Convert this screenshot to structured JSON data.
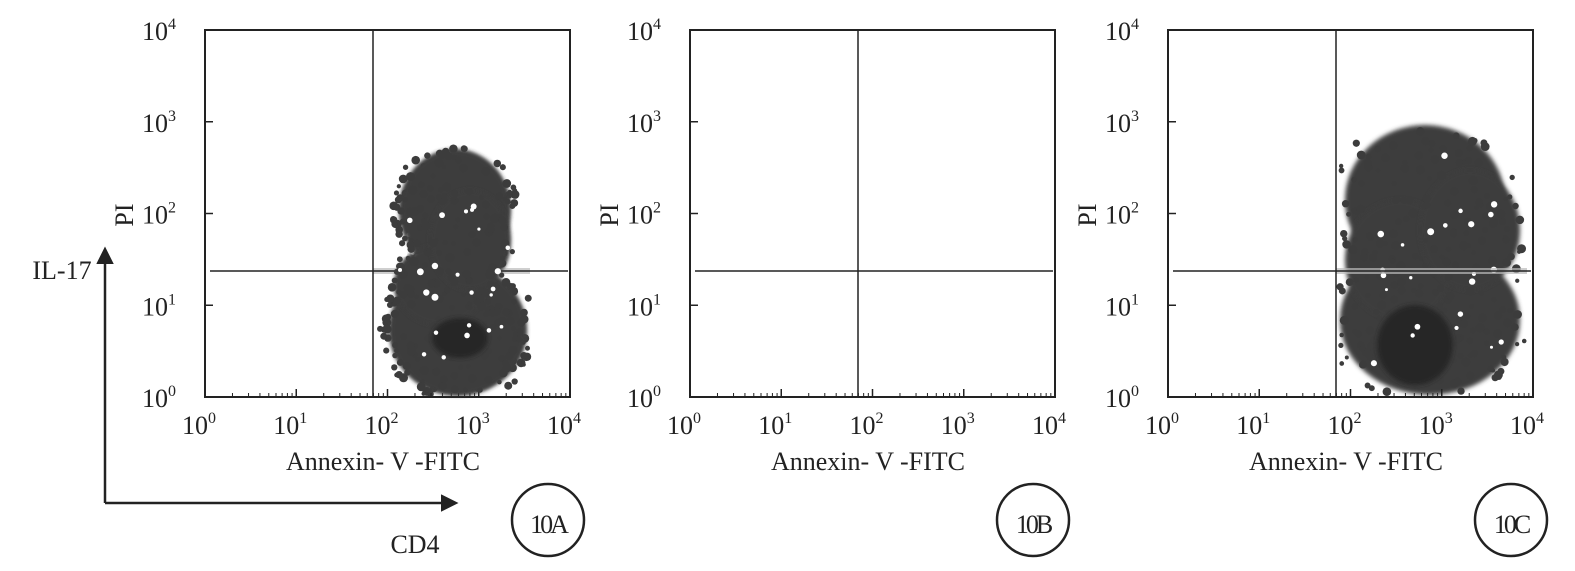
{
  "axis_labels": {
    "vertical": "IL-17",
    "horizontal": "CD4"
  },
  "panels": [
    {
      "id": "10A",
      "x_label": "Annexin- V -FITC",
      "y_label": "PI",
      "x_ticks": [
        {
          "base": "10",
          "exp": "0"
        },
        {
          "base": "10",
          "exp": "1"
        },
        {
          "base": "10",
          "exp": "2"
        },
        {
          "base": "10",
          "exp": "3"
        },
        {
          "base": "10",
          "exp": "4"
        }
      ],
      "y_ticks": [
        {
          "base": "10",
          "exp": "0"
        },
        {
          "base": "10",
          "exp": "1"
        },
        {
          "base": "10",
          "exp": "2"
        },
        {
          "base": "10",
          "exp": "3"
        },
        {
          "base": "10",
          "exp": "4"
        }
      ]
    },
    {
      "id": "10B",
      "x_label": "Annexin- V -FITC",
      "y_label": "PI",
      "x_ticks": [
        {
          "base": "10",
          "exp": "0"
        },
        {
          "base": "10",
          "exp": "1"
        },
        {
          "base": "10",
          "exp": "2"
        },
        {
          "base": "10",
          "exp": "3"
        },
        {
          "base": "10",
          "exp": "4"
        }
      ],
      "y_ticks": [
        {
          "base": "10",
          "exp": "0"
        },
        {
          "base": "10",
          "exp": "1"
        },
        {
          "base": "10",
          "exp": "2"
        },
        {
          "base": "10",
          "exp": "3"
        },
        {
          "base": "10",
          "exp": "4"
        }
      ]
    },
    {
      "id": "10C",
      "x_label": "Annexin- V -FITC",
      "y_label": "PI",
      "x_ticks": [
        {
          "base": "10",
          "exp": "0"
        },
        {
          "base": "10",
          "exp": "1"
        },
        {
          "base": "10",
          "exp": "2"
        },
        {
          "base": "10",
          "exp": "3"
        },
        {
          "base": "10",
          "exp": "4"
        }
      ],
      "y_ticks": [
        {
          "base": "10",
          "exp": "0"
        },
        {
          "base": "10",
          "exp": "1"
        },
        {
          "base": "10",
          "exp": "2"
        },
        {
          "base": "10",
          "exp": "3"
        },
        {
          "base": "10",
          "exp": "4"
        }
      ]
    }
  ]
}
